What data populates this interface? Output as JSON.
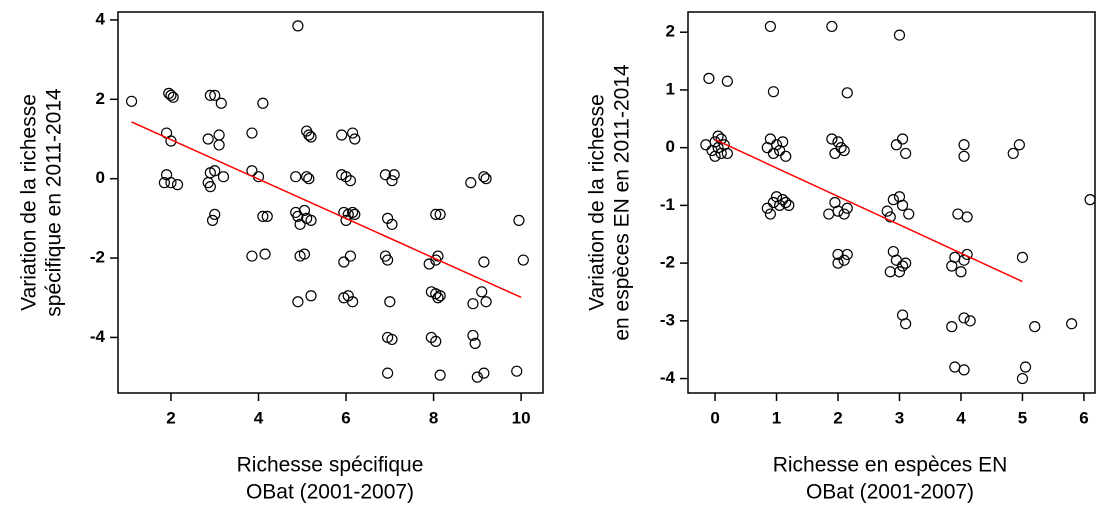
{
  "chart_data": [
    {
      "type": "scatter",
      "x_label": [
        "Richesse spécifique",
        "OBat (2001-2007)"
      ],
      "y_label": [
        "Variation de la richesse",
        "spécifique en 2011-2014"
      ],
      "xlim": [
        0.79,
        10.5
      ],
      "ylim": [
        -5.4,
        4.2
      ],
      "xticks": [
        2,
        4,
        6,
        8,
        10
      ],
      "yticks": [
        -4,
        -2,
        0,
        2,
        4
      ],
      "series": [
        {
          "color": "#000000",
          "x": [
            1.1,
            2.0,
            1.95,
            2.05,
            1.9,
            2.0,
            1.9,
            1.85,
            2.0,
            2.15,
            2.9,
            3.0,
            3.15,
            2.85,
            3.1,
            3.1,
            2.9,
            3.0,
            3.2,
            2.85,
            2.9,
            3.0,
            2.95,
            3.85,
            4.1,
            3.85,
            4.0,
            4.1,
            4.2,
            3.85,
            4.15,
            4.9,
            5.1,
            5.15,
            5.2,
            4.85,
            5.1,
            5.15,
            4.85,
            4.9,
            5.05,
            5.1,
            5.2,
            4.95,
            4.95,
            5.05,
            4.9,
            5.2,
            5.9,
            6.15,
            6.2,
            5.9,
            6.0,
            6.1,
            5.95,
            6.05,
            6.15,
            6.2,
            6.0,
            5.95,
            6.1,
            5.95,
            6.05,
            6.15,
            6.9,
            7.1,
            7.05,
            6.95,
            7.05,
            6.9,
            6.95,
            7.0,
            6.95,
            7.05,
            6.95,
            7.9,
            8.05,
            8.1,
            8.05,
            8.15,
            7.95,
            8.05,
            8.1,
            8.15,
            7.95,
            8.05,
            8.15,
            8.85,
            9.15,
            9.2,
            8.9,
            9.1,
            9.15,
            9.2,
            8.9,
            8.95,
            9.0,
            9.15,
            9.9,
            9.95,
            10.05
          ],
          "values": [
            1.95,
            2.1,
            2.15,
            2.05,
            1.15,
            0.95,
            0.1,
            -0.1,
            -0.1,
            -0.15,
            2.1,
            2.1,
            1.9,
            1.0,
            0.85,
            1.1,
            0.15,
            0.2,
            0.05,
            -0.1,
            -0.2,
            -0.9,
            -1.05,
            1.15,
            1.9,
            0.2,
            0.05,
            -0.95,
            -0.95,
            -1.95,
            -1.9,
            3.85,
            1.2,
            1.1,
            1.05,
            0.05,
            0.05,
            0.0,
            -0.85,
            -0.95,
            -0.8,
            -1.0,
            -1.05,
            -1.15,
            -1.95,
            -1.9,
            -3.1,
            -2.95,
            1.1,
            1.15,
            1.0,
            0.1,
            0.05,
            -0.05,
            -0.85,
            -0.9,
            -0.85,
            -0.9,
            -1.05,
            -2.1,
            -1.95,
            -3.0,
            -2.95,
            -3.1,
            0.1,
            0.1,
            -0.05,
            -1.0,
            -1.15,
            -1.95,
            -2.05,
            -3.1,
            -4.0,
            -4.05,
            -4.9,
            -2.15,
            -2.05,
            -1.95,
            -0.9,
            -0.9,
            -2.85,
            -2.9,
            -3.0,
            -2.95,
            -4.0,
            -4.1,
            -4.95,
            -0.1,
            0.05,
            0.0,
            -3.15,
            -2.85,
            -2.1,
            -3.1,
            -3.95,
            -4.15,
            -5.0,
            -4.9,
            -4.85,
            -1.05,
            -2.05
          ]
        }
      ],
      "fit": {
        "color": "#ff0000",
        "x": [
          1.1,
          10.0
        ],
        "values": [
          1.43,
          -2.99
        ]
      }
    },
    {
      "type": "scatter",
      "x_label": [
        "Richesse en espèces EN",
        "OBat (2001-2007)"
      ],
      "y_label": [
        "Variation de la richesse",
        "en espèces EN en 2011-2014"
      ],
      "xlim": [
        -0.44,
        6.18
      ],
      "ylim": [
        -4.25,
        2.35
      ],
      "xticks": [
        0,
        1,
        2,
        3,
        4,
        5,
        6
      ],
      "yticks": [
        -4,
        -3,
        -2,
        -1,
        0,
        1,
        2
      ],
      "series": [
        {
          "color": "#000000",
          "x": [
            -0.1,
            0.2,
            0.0,
            -0.15,
            0.05,
            0.1,
            0.15,
            -0.05,
            0.0,
            0.1,
            0.2,
            0.05,
            0.9,
            0.95,
            0.9,
            1.0,
            1.1,
            0.85,
            0.95,
            1.05,
            1.15,
            1.0,
            1.1,
            1.15,
            0.95,
            0.85,
            1.05,
            0.9,
            1.2,
            1.9,
            2.15,
            1.9,
            2.0,
            2.05,
            1.95,
            2.1,
            1.85,
            2.0,
            2.1,
            2.15,
            1.95,
            2.0,
            2.1,
            2.15,
            2.0,
            3.0,
            3.05,
            2.95,
            3.1,
            2.8,
            2.9,
            3.0,
            3.05,
            3.15,
            2.85,
            2.9,
            2.95,
            3.05,
            3.1,
            2.85,
            3.0,
            3.05,
            3.1,
            3.95,
            4.1,
            3.9,
            4.05,
            4.1,
            3.85,
            4.0,
            3.85,
            4.05,
            4.15,
            3.9,
            4.05,
            4.05,
            4.05,
            4.85,
            4.95,
            5.0,
            5.05,
            5.0,
            5.2,
            5.8,
            6.1
          ],
          "values": [
            1.2,
            1.15,
            0.1,
            0.05,
            0.2,
            0.15,
            0.05,
            -0.05,
            -0.15,
            -0.1,
            -0.1,
            0.0,
            2.1,
            0.97,
            0.15,
            0.05,
            0.1,
            0.0,
            -0.1,
            -0.05,
            -0.15,
            -0.85,
            -0.9,
            -0.95,
            -0.95,
            -1.05,
            -1.0,
            -1.15,
            -1.0,
            2.1,
            0.95,
            0.15,
            0.1,
            0.0,
            -0.1,
            -0.05,
            -1.15,
            -1.1,
            -1.15,
            -1.05,
            -0.95,
            -1.85,
            -1.95,
            -1.85,
            -2.0,
            1.95,
            0.15,
            0.05,
            -0.1,
            -1.1,
            -0.9,
            -0.85,
            -1.0,
            -1.15,
            -1.2,
            -1.8,
            -1.95,
            -2.05,
            -2.0,
            -2.15,
            -2.15,
            -2.9,
            -3.05,
            -1.15,
            -1.2,
            -1.9,
            -1.95,
            -1.85,
            -2.05,
            -2.15,
            -3.1,
            -2.95,
            -3.0,
            -3.8,
            -3.85,
            0.05,
            -0.15,
            -0.1,
            0.05,
            -1.9,
            -3.8,
            -4.0,
            -3.1,
            -3.05,
            -0.9
          ]
        }
      ],
      "fit": {
        "color": "#ff0000",
        "x": [
          0.0,
          5.0
        ],
        "values": [
          0.14,
          -2.32
        ]
      }
    }
  ]
}
